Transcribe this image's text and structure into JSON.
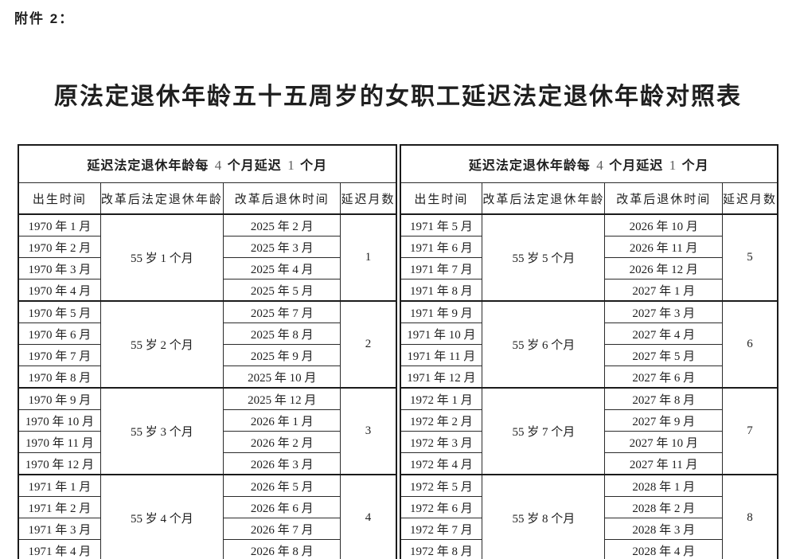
{
  "page": {
    "attachment_label": "附件 2：",
    "title": "原法定退休年龄五十五周岁的女职工延迟法定退休年龄对照表"
  },
  "colors": {
    "text": "#1f1f1f",
    "header_digit_gray": "#5f5f5f",
    "border": "#1b1b1b"
  },
  "table": {
    "span_header_parts": [
      "延迟法定退休年龄每 ",
      "4",
      " 个月延迟 ",
      "1",
      " 个月"
    ],
    "columns": [
      "出生时间",
      "改革后法定退休年龄",
      "改革后退休时间",
      "延迟月数"
    ],
    "halves": [
      {
        "groups": [
          {
            "births": [
              "1970 年 1 月",
              "1970 年 2 月",
              "1970 年 3 月",
              "1970 年 4 月"
            ],
            "age": "55 岁 1 个月",
            "retirements": [
              "2025 年 2 月",
              "2025 年 3 月",
              "2025 年 4 月",
              "2025 年 5 月"
            ],
            "delay": "1"
          },
          {
            "births": [
              "1970 年 5 月",
              "1970 年 6 月",
              "1970 年 7 月",
              "1970 年 8 月"
            ],
            "age": "55 岁 2 个月",
            "retirements": [
              "2025 年 7 月",
              "2025 年 8 月",
              "2025 年 9 月",
              "2025 年 10 月"
            ],
            "delay": "2"
          },
          {
            "births": [
              "1970 年 9 月",
              "1970 年 10 月",
              "1970 年 11 月",
              "1970 年 12 月"
            ],
            "age": "55 岁 3 个月",
            "retirements": [
              "2025 年 12 月",
              "2026 年 1 月",
              "2026 年 2 月",
              "2026 年 3 月"
            ],
            "delay": "3"
          },
          {
            "births": [
              "1971 年 1 月",
              "1971 年 2 月",
              "1971 年 3 月",
              "1971 年 4 月"
            ],
            "age": "55 岁 4 个月",
            "retirements": [
              "2026 年 5 月",
              "2026 年 6 月",
              "2026 年 7 月",
              "2026 年 8 月"
            ],
            "delay": "4"
          }
        ]
      },
      {
        "groups": [
          {
            "births": [
              "1971 年 5 月",
              "1971 年 6 月",
              "1971 年 7 月",
              "1971 年 8 月"
            ],
            "age": "55 岁 5 个月",
            "retirements": [
              "2026 年 10 月",
              "2026 年 11 月",
              "2026 年 12 月",
              "2027 年 1 月"
            ],
            "delay": "5"
          },
          {
            "births": [
              "1971 年 9 月",
              "1971 年 10 月",
              "1971 年 11 月",
              "1971 年 12 月"
            ],
            "age": "55 岁 6 个月",
            "retirements": [
              "2027 年 3 月",
              "2027 年 4 月",
              "2027 年 5 月",
              "2027 年 6 月"
            ],
            "delay": "6"
          },
          {
            "births": [
              "1972 年 1 月",
              "1972 年 2 月",
              "1972 年 3 月",
              "1972 年 4 月"
            ],
            "age": "55 岁 7 个月",
            "retirements": [
              "2027 年 8 月",
              "2027 年 9 月",
              "2027 年 10 月",
              "2027 年 11 月"
            ],
            "delay": "7"
          },
          {
            "births": [
              "1972 年 5 月",
              "1972 年 6 月",
              "1972 年 7 月",
              "1972 年 8 月"
            ],
            "age": "55 岁 8 个月",
            "retirements": [
              "2028 年 1 月",
              "2028 年 2 月",
              "2028 年 3 月",
              "2028 年 4 月"
            ],
            "delay": "8"
          }
        ]
      }
    ]
  }
}
